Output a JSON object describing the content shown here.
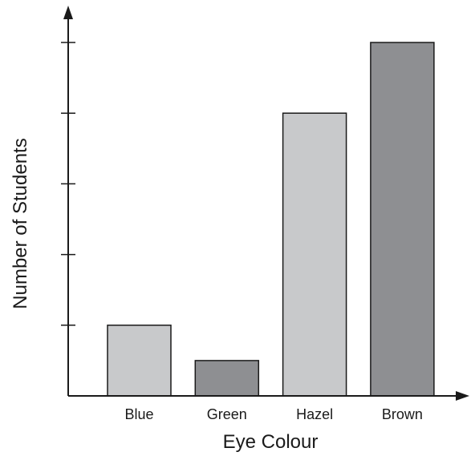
{
  "chart_data": {
    "type": "bar",
    "title": "",
    "xlabel": "Eye Colour",
    "ylabel": "Number of Students",
    "categories": [
      "Blue",
      "Green",
      "Hazel",
      "Brown"
    ],
    "values": [
      1,
      0.5,
      4,
      5
    ],
    "ylim": [
      0,
      5
    ],
    "y_ticks": [
      1,
      2,
      3,
      4,
      5
    ],
    "y_tick_labels_shown": false,
    "grid": false,
    "bar_colors": [
      "#c8c9cb",
      "#8e8f92",
      "#c8c9cb",
      "#8e8f92"
    ],
    "bar_outline_color": "#1a1a1a",
    "axis_color": "#1a1a1a"
  }
}
